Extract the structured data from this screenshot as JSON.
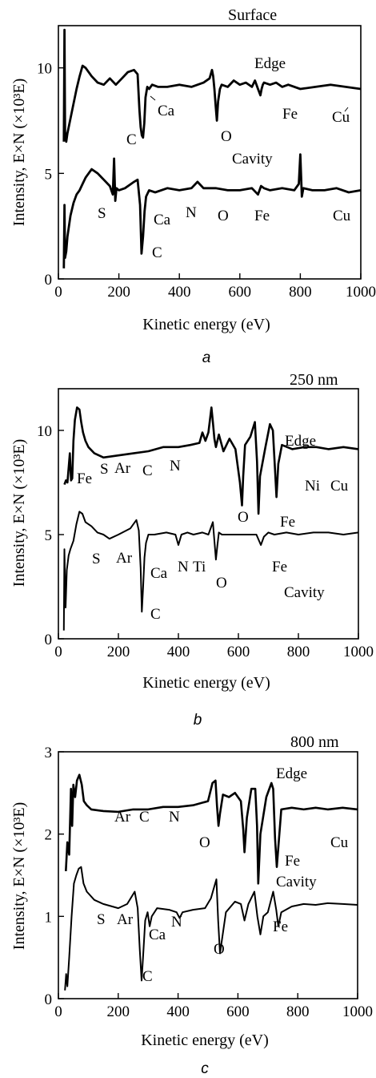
{
  "chart_data": [
    {
      "type": "line",
      "panel": "a",
      "title": "Surface",
      "xlabel": "Kinetic energy (eV)",
      "ylabel": "Intensity, E×N (×10³E)",
      "xlim": [
        0,
        1000
      ],
      "ylim": [
        0,
        12
      ],
      "xticks": [
        "0",
        "200",
        "400",
        "600",
        "800",
        "1000"
      ],
      "yticks": [
        "0",
        "5",
        "10"
      ],
      "series": [
        {
          "name": "Edge",
          "x": [
            18,
            20,
            22,
            26,
            30,
            40,
            50,
            60,
            70,
            80,
            90,
            110,
            130,
            150,
            170,
            190,
            210,
            230,
            250,
            262,
            268,
            272,
            276,
            280,
            284,
            288,
            294,
            300,
            310,
            330,
            360,
            400,
            440,
            480,
            500,
            508,
            512,
            516,
            520,
            524,
            528,
            534,
            540,
            560,
            580,
            600,
            620,
            640,
            650,
            660,
            668,
            672,
            676,
            680,
            700,
            720,
            740,
            760,
            800,
            850,
            900,
            950,
            1000
          ],
          "y": [
            6.5,
            11.8,
            7.0,
            6.5,
            6.9,
            7.6,
            8.3,
            9.0,
            9.6,
            10.1,
            10.0,
            9.6,
            9.3,
            9.2,
            9.5,
            9.2,
            9.5,
            9.8,
            9.9,
            9.7,
            8.0,
            7.2,
            6.8,
            6.7,
            7.4,
            8.6,
            9.1,
            9.0,
            9.2,
            9.1,
            9.1,
            9.2,
            9.1,
            9.3,
            9.5,
            9.9,
            9.6,
            9.0,
            8.2,
            7.5,
            8.4,
            9.0,
            9.2,
            9.1,
            9.4,
            9.2,
            9.3,
            9.1,
            9.4,
            9.0,
            8.7,
            9.0,
            9.2,
            9.3,
            9.2,
            9.3,
            9.1,
            9.2,
            9.0,
            9.1,
            9.2,
            9.1,
            9.0
          ]
        },
        {
          "name": "Cavity",
          "x": [
            18,
            20,
            22,
            26,
            30,
            40,
            50,
            60,
            70,
            80,
            90,
            100,
            110,
            130,
            150,
            170,
            180,
            184,
            188,
            192,
            200,
            220,
            250,
            262,
            270,
            275,
            280,
            285,
            290,
            300,
            320,
            360,
            400,
            440,
            460,
            480,
            520,
            560,
            600,
            640,
            660,
            670,
            680,
            700,
            740,
            780,
            795,
            800,
            805,
            810,
            840,
            880,
            920,
            960,
            1000
          ],
          "y": [
            0.5,
            3.5,
            1.0,
            1.3,
            2.0,
            3.0,
            3.6,
            4.0,
            4.2,
            4.5,
            4.8,
            5.0,
            5.2,
            5.0,
            4.7,
            4.4,
            4.0,
            5.7,
            3.7,
            4.3,
            4.2,
            4.3,
            4.6,
            4.7,
            3.5,
            1.2,
            2.0,
            3.2,
            3.9,
            4.2,
            4.1,
            4.3,
            4.2,
            4.3,
            4.6,
            4.3,
            4.3,
            4.2,
            4.2,
            4.3,
            4.0,
            4.4,
            4.3,
            4.2,
            4.3,
            4.2,
            4.5,
            5.9,
            3.9,
            4.3,
            4.2,
            4.2,
            4.3,
            4.1,
            4.2
          ]
        }
      ],
      "annotations": [
        "Edge",
        "Ca",
        "C",
        "O",
        "Fe",
        "Cu",
        "Cavity",
        "S",
        "Ca",
        "N",
        "O",
        "Fe",
        "Cu",
        "C"
      ]
    },
    {
      "type": "line",
      "panel": "b",
      "title": "250 nm",
      "xlabel": "Kinetic energy (eV)",
      "ylabel": "Intensity, E×N (×10³E)",
      "xlim": [
        0,
        1000
      ],
      "ylim": [
        0,
        12
      ],
      "xticks": [
        "0",
        "200",
        "400",
        "600",
        "800",
        "1000"
      ],
      "yticks": [
        "0",
        "5",
        "10"
      ],
      "series": [
        {
          "name": "Edge",
          "x": [
            20,
            25,
            30,
            38,
            42,
            46,
            50,
            55,
            62,
            70,
            76,
            82,
            90,
            100,
            120,
            150,
            200,
            250,
            300,
            350,
            400,
            440,
            470,
            480,
            490,
            500,
            510,
            515,
            520,
            525,
            535,
            550,
            570,
            590,
            605,
            612,
            616,
            622,
            640,
            655,
            662,
            667,
            672,
            690,
            705,
            715,
            722,
            727,
            733,
            745,
            780,
            820,
            860,
            900,
            950,
            1000
          ],
          "y": [
            7.4,
            7.6,
            7.5,
            8.9,
            7.6,
            7.7,
            9.5,
            10.5,
            11.1,
            11.0,
            10.4,
            9.9,
            9.5,
            9.2,
            8.9,
            8.7,
            8.8,
            8.9,
            9.0,
            9.2,
            9.2,
            9.3,
            9.4,
            9.9,
            9.5,
            9.9,
            11.1,
            10.4,
            9.6,
            9.2,
            9.8,
            9.0,
            9.6,
            9.1,
            7.5,
            6.4,
            7.8,
            9.3,
            9.7,
            10.4,
            8.5,
            6.0,
            7.8,
            9.2,
            10.3,
            10.0,
            8.1,
            6.8,
            8.4,
            9.3,
            9.1,
            9.2,
            9.2,
            9.1,
            9.2,
            9.1
          ]
        },
        {
          "name": "Cavity",
          "x": [
            18,
            20,
            24,
            28,
            34,
            40,
            50,
            60,
            70,
            80,
            90,
            110,
            130,
            150,
            170,
            200,
            240,
            260,
            268,
            274,
            278,
            282,
            287,
            292,
            300,
            320,
            360,
            390,
            400,
            410,
            430,
            450,
            480,
            500,
            515,
            520,
            525,
            530,
            535,
            545,
            580,
            620,
            660,
            675,
            685,
            700,
            720,
            760,
            800,
            850,
            900,
            950,
            1000
          ],
          "y": [
            0.4,
            4.3,
            1.5,
            3.3,
            4.0,
            4.3,
            4.7,
            5.5,
            6.1,
            6.0,
            5.6,
            5.4,
            5.1,
            5.0,
            4.8,
            5.0,
            5.3,
            5.7,
            5.2,
            3.4,
            1.3,
            2.4,
            3.9,
            4.6,
            5.0,
            5.0,
            5.1,
            5.0,
            4.5,
            5.0,
            5.1,
            5.0,
            5.1,
            5.0,
            5.6,
            4.7,
            3.8,
            4.5,
            5.1,
            5.0,
            5.0,
            5.0,
            5.0,
            4.5,
            4.9,
            5.1,
            5.0,
            5.1,
            5.0,
            5.1,
            5.1,
            5.0,
            5.1
          ]
        }
      ],
      "annotations": [
        "Edge",
        "Fe",
        "S",
        "Ar",
        "C",
        "N",
        "O",
        "Fe",
        "Ni",
        "Cu",
        "S",
        "Ar",
        "Ca",
        "N",
        "Ti",
        "O",
        "Fe",
        "Cavity",
        "C"
      ]
    },
    {
      "type": "line",
      "panel": "c",
      "title": "800 nm",
      "xlabel": "Kinetic energy (eV)",
      "ylabel": "Intensity, E×N (×10³E)",
      "xlim": [
        0,
        1000
      ],
      "ylim": [
        0,
        3
      ],
      "xticks": [
        "0",
        "200",
        "400",
        "600",
        "800",
        "1000"
      ],
      "yticks": [
        "0",
        "1",
        "2",
        "3"
      ],
      "series": [
        {
          "name": "Edge",
          "x": [
            25,
            30,
            36,
            42,
            46,
            50,
            56,
            62,
            70,
            78,
            85,
            95,
            110,
            150,
            200,
            250,
            300,
            350,
            400,
            450,
            500,
            515,
            525,
            530,
            535,
            540,
            550,
            570,
            590,
            610,
            618,
            622,
            630,
            645,
            658,
            664,
            668,
            675,
            695,
            712,
            718,
            724,
            730,
            745,
            780,
            820,
            860,
            900,
            950,
            1000
          ],
          "y": [
            1.55,
            1.9,
            1.75,
            2.55,
            2.1,
            2.6,
            2.45,
            2.65,
            2.72,
            2.6,
            2.4,
            2.35,
            2.3,
            2.28,
            2.27,
            2.3,
            2.3,
            2.33,
            2.33,
            2.35,
            2.4,
            2.62,
            2.65,
            2.35,
            2.1,
            2.25,
            2.48,
            2.45,
            2.5,
            2.4,
            2.05,
            1.78,
            2.2,
            2.55,
            2.55,
            2.1,
            1.4,
            2.0,
            2.45,
            2.62,
            2.55,
            1.95,
            1.6,
            2.3,
            2.32,
            2.3,
            2.32,
            2.3,
            2.32,
            2.3
          ]
        },
        {
          "name": "Cavity",
          "x": [
            22,
            26,
            30,
            36,
            44,
            52,
            60,
            68,
            76,
            84,
            95,
            120,
            150,
            180,
            200,
            230,
            255,
            265,
            272,
            278,
            283,
            290,
            298,
            305,
            312,
            330,
            370,
            395,
            405,
            415,
            450,
            490,
            510,
            520,
            528,
            534,
            540,
            560,
            590,
            610,
            622,
            635,
            655,
            665,
            675,
            685,
            700,
            718,
            728,
            735,
            745,
            780,
            820,
            860,
            900,
            950,
            1000
          ],
          "y": [
            0.1,
            0.3,
            0.15,
            0.5,
            1.0,
            1.4,
            1.5,
            1.58,
            1.6,
            1.4,
            1.3,
            1.2,
            1.15,
            1.12,
            1.1,
            1.15,
            1.3,
            1.1,
            0.6,
            0.22,
            0.5,
            0.95,
            1.05,
            0.88,
            1.0,
            1.1,
            1.08,
            1.05,
            0.98,
            1.05,
            1.08,
            1.1,
            1.22,
            1.35,
            1.45,
            0.95,
            0.55,
            1.05,
            1.18,
            1.15,
            0.95,
            1.15,
            1.3,
            1.0,
            0.78,
            1.0,
            1.05,
            1.3,
            1.08,
            0.88,
            1.05,
            1.12,
            1.15,
            1.14,
            1.16,
            1.15,
            1.14
          ]
        }
      ],
      "annotations": [
        "Edge",
        "Ar",
        "C",
        "N",
        "O",
        "Cu",
        "Fe",
        "Cavity",
        "S",
        "Ar",
        "Ca",
        "N",
        "O",
        "Fe",
        "C"
      ]
    }
  ],
  "captions": [
    "a",
    "b",
    "c"
  ]
}
